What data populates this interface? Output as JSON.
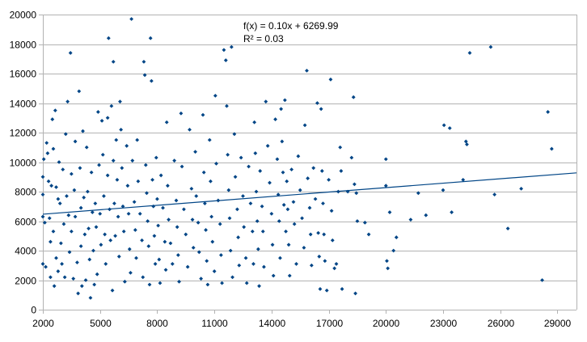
{
  "chart_data": {
    "type": "scatter",
    "title": "",
    "xlabel": "",
    "ylabel": "",
    "xlim": [
      2000,
      30000
    ],
    "ylim": [
      0,
      20000
    ],
    "x_ticks": [
      2000,
      5000,
      8000,
      11000,
      14000,
      17000,
      20000,
      23000,
      26000,
      29000
    ],
    "y_ticks": [
      0,
      2000,
      4000,
      6000,
      8000,
      10000,
      12000,
      14000,
      16000,
      18000,
      20000
    ],
    "x_tick_labels": [
      "2000",
      "5000",
      "8000",
      "11000",
      "14000",
      "17000",
      "20000",
      "23000",
      "26000",
      "29000"
    ],
    "y_tick_labels": [
      "0",
      "2000",
      "4000",
      "6000",
      "8000",
      "10000",
      "12000",
      "14000",
      "16000",
      "18000",
      "20000"
    ],
    "grid": "horizontal",
    "legend": "none",
    "colors": {
      "points": "#004586",
      "trendline": "#004586",
      "grid": "#b3b3b3"
    },
    "trendline": {
      "type": "linear",
      "slope": 0.1,
      "intercept": 6269.99,
      "equation_label": "f(x) = 0.10x + 6269.99",
      "r2_label": "R² = 0.03"
    },
    "series": [
      {
        "marker": "diamond",
        "points": [
          [
            2000,
            9000
          ],
          [
            2000,
            7800
          ],
          [
            2000,
            6300
          ],
          [
            2000,
            3100
          ],
          [
            2050,
            10200
          ],
          [
            2100,
            5900
          ],
          [
            2150,
            2900
          ],
          [
            2200,
            11300
          ],
          [
            2250,
            10600
          ],
          [
            2300,
            8700
          ],
          [
            2350,
            6200
          ],
          [
            2400,
            4600
          ],
          [
            2400,
            2200
          ],
          [
            2450,
            8400
          ],
          [
            2500,
            12900
          ],
          [
            2550,
            10900
          ],
          [
            2550,
            5300
          ],
          [
            2600,
            1600
          ],
          [
            2650,
            13500
          ],
          [
            2700,
            8300
          ],
          [
            2700,
            3500
          ],
          [
            2800,
            7500
          ],
          [
            2800,
            2600
          ],
          [
            2850,
            10000
          ],
          [
            2900,
            7200
          ],
          [
            2950,
            4500
          ],
          [
            3000,
            3100
          ],
          [
            3050,
            9500
          ],
          [
            3100,
            5800
          ],
          [
            3150,
            2200
          ],
          [
            3200,
            11900
          ],
          [
            3250,
            7700
          ],
          [
            3300,
            14100
          ],
          [
            3350,
            6400
          ],
          [
            3400,
            3900
          ],
          [
            3450,
            17400
          ],
          [
            3500,
            9200
          ],
          [
            3500,
            5300
          ],
          [
            3600,
            2100
          ],
          [
            3650,
            8100
          ],
          [
            3700,
            11400
          ],
          [
            3700,
            6300
          ],
          [
            3800,
            3200
          ],
          [
            3850,
            1100
          ],
          [
            3900,
            14800
          ],
          [
            3950,
            9600
          ],
          [
            4000,
            6900
          ],
          [
            4000,
            4300
          ],
          [
            4050,
            1600
          ],
          [
            4100,
            12100
          ],
          [
            4150,
            7600
          ],
          [
            4200,
            5100
          ],
          [
            4250,
            2000
          ],
          [
            4300,
            11000
          ],
          [
            4350,
            8000
          ],
          [
            4400,
            5500
          ],
          [
            4450,
            3400
          ],
          [
            4500,
            800
          ],
          [
            4550,
            9300
          ],
          [
            4600,
            6600
          ],
          [
            4650,
            4000
          ],
          [
            4700,
            1700
          ],
          [
            4750,
            7200
          ],
          [
            4800,
            5600
          ],
          [
            4850,
            2400
          ],
          [
            4900,
            13400
          ],
          [
            4950,
            9800
          ],
          [
            5000,
            6500
          ],
          [
            5050,
            4400
          ],
          [
            5100,
            12800
          ],
          [
            5150,
            10500
          ],
          [
            5200,
            7700
          ],
          [
            5250,
            5100
          ],
          [
            5300,
            3100
          ],
          [
            5400,
            13000
          ],
          [
            5400,
            9100
          ],
          [
            5450,
            18400
          ],
          [
            5500,
            6800
          ],
          [
            5550,
            4700
          ],
          [
            5600,
            13800
          ],
          [
            5650,
            1300
          ],
          [
            5700,
            10100
          ],
          [
            5700,
            16800
          ],
          [
            5750,
            7200
          ],
          [
            5800,
            5000
          ],
          [
            5850,
            11500
          ],
          [
            5900,
            8800
          ],
          [
            5950,
            6300
          ],
          [
            6000,
            3600
          ],
          [
            6050,
            14100
          ],
          [
            6100,
            12200
          ],
          [
            6150,
            9600
          ],
          [
            6200,
            7000
          ],
          [
            6250,
            5300
          ],
          [
            6300,
            1900
          ],
          [
            6400,
            11100
          ],
          [
            6450,
            8400
          ],
          [
            6500,
            6500
          ],
          [
            6550,
            4100
          ],
          [
            6600,
            2500
          ],
          [
            6650,
            19700
          ],
          [
            6700,
            10100
          ],
          [
            6800,
            7300
          ],
          [
            6850,
            5400
          ],
          [
            6900,
            3500
          ],
          [
            6950,
            11500
          ],
          [
            7000,
            8700
          ],
          [
            7100,
            6500
          ],
          [
            7200,
            4700
          ],
          [
            7250,
            2200
          ],
          [
            7300,
            16800
          ],
          [
            7350,
            15900
          ],
          [
            7400,
            9800
          ],
          [
            7450,
            7900
          ],
          [
            7500,
            6000
          ],
          [
            7550,
            4300
          ],
          [
            7600,
            1700
          ],
          [
            7650,
            18400
          ],
          [
            7700,
            15500
          ],
          [
            7750,
            8800
          ],
          [
            7800,
            7000
          ],
          [
            7850,
            5000
          ],
          [
            7900,
            3100
          ],
          [
            7950,
            10300
          ],
          [
            8000,
            7500
          ],
          [
            8050,
            5700
          ],
          [
            8100,
            3400
          ],
          [
            8150,
            1800
          ],
          [
            8200,
            9100
          ],
          [
            8300,
            6900
          ],
          [
            8400,
            4600
          ],
          [
            8450,
            2700
          ],
          [
            8500,
            12700
          ],
          [
            8550,
            8400
          ],
          [
            8600,
            6100
          ],
          [
            8700,
            4500
          ],
          [
            8800,
            3100
          ],
          [
            8900,
            10100
          ],
          [
            9000,
            7400
          ],
          [
            9050,
            5600
          ],
          [
            9100,
            3700
          ],
          [
            9150,
            1900
          ],
          [
            9250,
            13300
          ],
          [
            9300,
            9700
          ],
          [
            9400,
            6800
          ],
          [
            9500,
            5100
          ],
          [
            9600,
            2900
          ],
          [
            9700,
            12200
          ],
          [
            9800,
            8200
          ],
          [
            9850,
            6100
          ],
          [
            9900,
            4200
          ],
          [
            10000,
            10700
          ],
          [
            10050,
            7700
          ],
          [
            10150,
            5900
          ],
          [
            10200,
            3900
          ],
          [
            10300,
            2100
          ],
          [
            10400,
            13200
          ],
          [
            10450,
            9300
          ],
          [
            10500,
            7200
          ],
          [
            10550,
            5400
          ],
          [
            10600,
            3300
          ],
          [
            10650,
            1700
          ],
          [
            10750,
            11500
          ],
          [
            10800,
            8700
          ],
          [
            10850,
            6300
          ],
          [
            10900,
            4600
          ],
          [
            11000,
            2600
          ],
          [
            11050,
            14500
          ],
          [
            11100,
            9900
          ],
          [
            11200,
            7400
          ],
          [
            11300,
            5800
          ],
          [
            11350,
            3700
          ],
          [
            11400,
            1800
          ],
          [
            11500,
            17600
          ],
          [
            11600,
            16900
          ],
          [
            11650,
            13800
          ],
          [
            11700,
            10500
          ],
          [
            11750,
            8100
          ],
          [
            11800,
            6200
          ],
          [
            11850,
            4000
          ],
          [
            11900,
            17800
          ],
          [
            11950,
            2200
          ],
          [
            12050,
            11900
          ],
          [
            12100,
            9000
          ],
          [
            12200,
            6800
          ],
          [
            12250,
            4900
          ],
          [
            12300,
            3000
          ],
          [
            12400,
            10300
          ],
          [
            12500,
            7700
          ],
          [
            12550,
            5600
          ],
          [
            12650,
            3500
          ],
          [
            12700,
            1800
          ],
          [
            12800,
            9700
          ],
          [
            12900,
            7200
          ],
          [
            13000,
            5300
          ],
          [
            13050,
            3100
          ],
          [
            13100,
            12700
          ],
          [
            13150,
            10600
          ],
          [
            13200,
            8000
          ],
          [
            13250,
            6000
          ],
          [
            13300,
            4100
          ],
          [
            13350,
            1600
          ],
          [
            13400,
            9400
          ],
          [
            13500,
            7000
          ],
          [
            13550,
            5300
          ],
          [
            13600,
            2900
          ],
          [
            13700,
            14100
          ],
          [
            13800,
            11100
          ],
          [
            13900,
            8600
          ],
          [
            14000,
            6500
          ],
          [
            14050,
            4400
          ],
          [
            14100,
            2300
          ],
          [
            14200,
            12900
          ],
          [
            14300,
            10200
          ],
          [
            14350,
            7800
          ],
          [
            14400,
            6000
          ],
          [
            14450,
            3500
          ],
          [
            14500,
            13600
          ],
          [
            14550,
            11400
          ],
          [
            14600,
            9300
          ],
          [
            14650,
            7100
          ],
          [
            14700,
            14200
          ],
          [
            14750,
            5300
          ],
          [
            14800,
            8700
          ],
          [
            14850,
            6800
          ],
          [
            14900,
            4400
          ],
          [
            14950,
            2300
          ],
          [
            15050,
            9500
          ],
          [
            15150,
            7300
          ],
          [
            15200,
            5800
          ],
          [
            15300,
            3100
          ],
          [
            15400,
            10400
          ],
          [
            15500,
            8100
          ],
          [
            15600,
            6200
          ],
          [
            15700,
            4200
          ],
          [
            15750,
            12500
          ],
          [
            15850,
            16200
          ],
          [
            15900,
            8900
          ],
          [
            16000,
            6900
          ],
          [
            16050,
            5100
          ],
          [
            16100,
            3000
          ],
          [
            16200,
            9600
          ],
          [
            16300,
            7500
          ],
          [
            16400,
            14000
          ],
          [
            16450,
            5200
          ],
          [
            16500,
            3600
          ],
          [
            16550,
            1400
          ],
          [
            16600,
            13600
          ],
          [
            16650,
            9400
          ],
          [
            16700,
            7200
          ],
          [
            16750,
            5100
          ],
          [
            16800,
            3300
          ],
          [
            16900,
            1300
          ],
          [
            17000,
            8800
          ],
          [
            17100,
            15600
          ],
          [
            17150,
            6700
          ],
          [
            17200,
            4700
          ],
          [
            17300,
            2800
          ],
          [
            17400,
            3100
          ],
          [
            17500,
            8000
          ],
          [
            17600,
            11000
          ],
          [
            17650,
            9400
          ],
          [
            17700,
            1400
          ],
          [
            18000,
            8000
          ],
          [
            18200,
            10300
          ],
          [
            18300,
            14400
          ],
          [
            18350,
            8500
          ],
          [
            18400,
            1100
          ],
          [
            18450,
            7900
          ],
          [
            18500,
            6000
          ],
          [
            18900,
            5900
          ],
          [
            19100,
            5100
          ],
          [
            20000,
            10200
          ],
          [
            20000,
            8400
          ],
          [
            20050,
            3300
          ],
          [
            20100,
            2800
          ],
          [
            20200,
            6600
          ],
          [
            20400,
            4000
          ],
          [
            20550,
            4900
          ],
          [
            21300,
            6100
          ],
          [
            21700,
            7900
          ],
          [
            22100,
            6400
          ],
          [
            23000,
            8100
          ],
          [
            23050,
            12500
          ],
          [
            23350,
            12300
          ],
          [
            23450,
            6600
          ],
          [
            24050,
            8800
          ],
          [
            24200,
            11400
          ],
          [
            24250,
            11200
          ],
          [
            24400,
            17400
          ],
          [
            25500,
            17800
          ],
          [
            25700,
            7800
          ],
          [
            26400,
            5500
          ],
          [
            27100,
            8200
          ],
          [
            28200,
            2000
          ],
          [
            28500,
            13400
          ],
          [
            28700,
            10900
          ]
        ]
      }
    ]
  }
}
